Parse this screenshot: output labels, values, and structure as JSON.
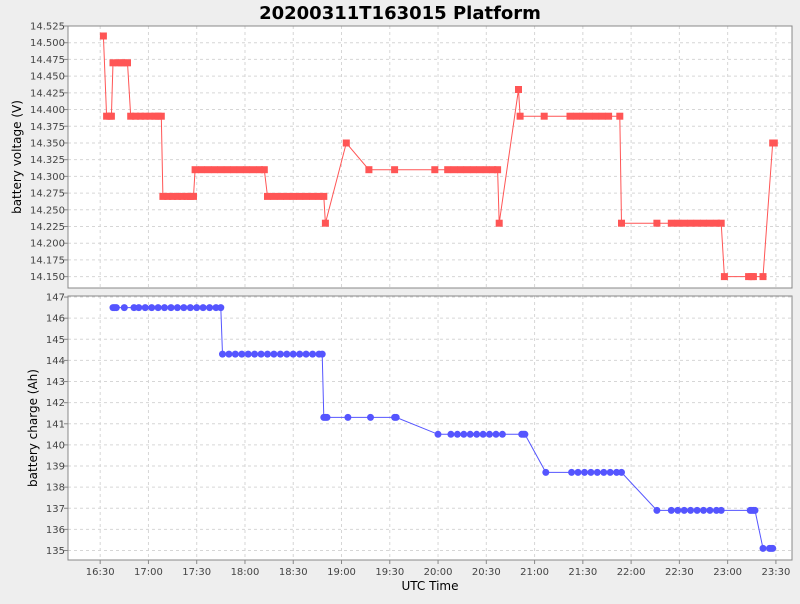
{
  "chart_data": {
    "type": "line",
    "title": "20200311T163015 Platform",
    "xlabel": "UTC Time",
    "x_ticks": [
      "16:30",
      "17:00",
      "17:30",
      "18:00",
      "18:30",
      "19:00",
      "19:30",
      "20:00",
      "20:30",
      "21:00",
      "21:30",
      "22:00",
      "22:30",
      "23:00",
      "23:30"
    ],
    "x_range_minutes_of_day": [
      970,
      1420
    ],
    "grid": true,
    "panels": [
      {
        "name": "voltage",
        "ylabel": "battery voltage (V)",
        "ylim": [
          14.133,
          14.525
        ],
        "y_ticks": [
          "14.150",
          "14.175",
          "14.200",
          "14.225",
          "14.250",
          "14.275",
          "14.300",
          "14.325",
          "14.350",
          "14.375",
          "14.400",
          "14.425",
          "14.450",
          "14.475",
          "14.500",
          "14.525"
        ],
        "color": "#ff5555",
        "marker": "square",
        "points": [
          [
            "16:32",
            14.51
          ],
          [
            "16:34",
            14.39
          ],
          [
            "16:36",
            14.39
          ],
          [
            "16:37",
            14.39
          ],
          [
            "16:38",
            14.47
          ],
          [
            "16:41",
            14.47
          ],
          [
            "16:43",
            14.47
          ],
          [
            "16:45",
            14.47
          ],
          [
            "16:47",
            14.47
          ],
          [
            "16:49",
            14.39
          ],
          [
            "16:52",
            14.39
          ],
          [
            "16:55",
            14.39
          ],
          [
            "16:58",
            14.39
          ],
          [
            "17:01",
            14.39
          ],
          [
            "17:04",
            14.39
          ],
          [
            "17:06",
            14.39
          ],
          [
            "17:08",
            14.39
          ],
          [
            "17:09",
            14.27
          ],
          [
            "17:12",
            14.27
          ],
          [
            "17:15",
            14.27
          ],
          [
            "17:18",
            14.27
          ],
          [
            "17:21",
            14.27
          ],
          [
            "17:24",
            14.27
          ],
          [
            "17:26",
            14.27
          ],
          [
            "17:28",
            14.27
          ],
          [
            "17:29",
            14.31
          ],
          [
            "17:33",
            14.31
          ],
          [
            "17:37",
            14.31
          ],
          [
            "17:41",
            14.31
          ],
          [
            "17:45",
            14.31
          ],
          [
            "17:49",
            14.31
          ],
          [
            "17:53",
            14.31
          ],
          [
            "17:57",
            14.31
          ],
          [
            "18:01",
            14.31
          ],
          [
            "18:05",
            14.31
          ],
          [
            "18:09",
            14.31
          ],
          [
            "18:12",
            14.31
          ],
          [
            "18:14",
            14.27
          ],
          [
            "18:18",
            14.27
          ],
          [
            "18:22",
            14.27
          ],
          [
            "18:26",
            14.27
          ],
          [
            "18:30",
            14.27
          ],
          [
            "18:34",
            14.27
          ],
          [
            "18:38",
            14.27
          ],
          [
            "18:42",
            14.27
          ],
          [
            "18:46",
            14.27
          ],
          [
            "18:49",
            14.27
          ],
          [
            "18:50",
            14.23
          ],
          [
            "19:03",
            14.35
          ],
          [
            "19:17",
            14.31
          ],
          [
            "19:33",
            14.31
          ],
          [
            "19:58",
            14.31
          ],
          [
            "20:06",
            14.31
          ],
          [
            "20:10",
            14.31
          ],
          [
            "20:14",
            14.31
          ],
          [
            "20:18",
            14.31
          ],
          [
            "20:22",
            14.31
          ],
          [
            "20:26",
            14.31
          ],
          [
            "20:30",
            14.31
          ],
          [
            "20:34",
            14.31
          ],
          [
            "20:37",
            14.31
          ],
          [
            "20:38",
            14.23
          ],
          [
            "20:50",
            14.43
          ],
          [
            "20:51",
            14.39
          ],
          [
            "21:06",
            14.39
          ],
          [
            "21:22",
            14.39
          ],
          [
            "21:26",
            14.39
          ],
          [
            "21:30",
            14.39
          ],
          [
            "21:34",
            14.39
          ],
          [
            "21:38",
            14.39
          ],
          [
            "21:42",
            14.39
          ],
          [
            "21:46",
            14.39
          ],
          [
            "21:53",
            14.39
          ],
          [
            "21:54",
            14.23
          ],
          [
            "22:16",
            14.23
          ],
          [
            "22:25",
            14.23
          ],
          [
            "22:29",
            14.23
          ],
          [
            "22:33",
            14.23
          ],
          [
            "22:37",
            14.23
          ],
          [
            "22:41",
            14.23
          ],
          [
            "22:45",
            14.23
          ],
          [
            "22:49",
            14.23
          ],
          [
            "22:53",
            14.23
          ],
          [
            "22:56",
            14.23
          ],
          [
            "22:58",
            14.15
          ],
          [
            "23:13",
            14.15
          ],
          [
            "23:15",
            14.15
          ],
          [
            "23:16",
            14.15
          ],
          [
            "23:22",
            14.15
          ],
          [
            "23:28",
            14.35
          ],
          [
            "23:29",
            14.35
          ]
        ]
      },
      {
        "name": "charge",
        "ylabel": "battery charge (Ah)",
        "ylim": [
          134.55,
          147.05
        ],
        "y_ticks": [
          "135",
          "136",
          "137",
          "138",
          "139",
          "140",
          "141",
          "142",
          "143",
          "144",
          "145",
          "146",
          "147"
        ],
        "color": "#5555ff",
        "marker": "circle",
        "points": [
          [
            "16:38",
            146.5
          ],
          [
            "16:39",
            146.5
          ],
          [
            "16:40",
            146.5
          ],
          [
            "16:45",
            146.5
          ],
          [
            "16:51",
            146.5
          ],
          [
            "16:54",
            146.5
          ],
          [
            "16:58",
            146.5
          ],
          [
            "17:02",
            146.5
          ],
          [
            "17:06",
            146.5
          ],
          [
            "17:10",
            146.5
          ],
          [
            "17:14",
            146.5
          ],
          [
            "17:18",
            146.5
          ],
          [
            "17:22",
            146.5
          ],
          [
            "17:26",
            146.5
          ],
          [
            "17:30",
            146.5
          ],
          [
            "17:34",
            146.5
          ],
          [
            "17:38",
            146.5
          ],
          [
            "17:42",
            146.5
          ],
          [
            "17:45",
            146.5
          ],
          [
            "17:46",
            144.3
          ],
          [
            "17:50",
            144.3
          ],
          [
            "17:54",
            144.3
          ],
          [
            "17:58",
            144.3
          ],
          [
            "18:02",
            144.3
          ],
          [
            "18:06",
            144.3
          ],
          [
            "18:10",
            144.3
          ],
          [
            "18:14",
            144.3
          ],
          [
            "18:18",
            144.3
          ],
          [
            "18:22",
            144.3
          ],
          [
            "18:26",
            144.3
          ],
          [
            "18:30",
            144.3
          ],
          [
            "18:34",
            144.3
          ],
          [
            "18:38",
            144.3
          ],
          [
            "18:42",
            144.3
          ],
          [
            "18:46",
            144.3
          ],
          [
            "18:48",
            144.3
          ],
          [
            "18:49",
            141.3
          ],
          [
            "18:50",
            141.3
          ],
          [
            "18:51",
            141.3
          ],
          [
            "19:04",
            141.3
          ],
          [
            "19:18",
            141.3
          ],
          [
            "19:33",
            141.3
          ],
          [
            "19:34",
            141.3
          ],
          [
            "20:00",
            140.5
          ],
          [
            "20:08",
            140.5
          ],
          [
            "20:12",
            140.5
          ],
          [
            "20:16",
            140.5
          ],
          [
            "20:20",
            140.5
          ],
          [
            "20:24",
            140.5
          ],
          [
            "20:28",
            140.5
          ],
          [
            "20:32",
            140.5
          ],
          [
            "20:36",
            140.5
          ],
          [
            "20:40",
            140.5
          ],
          [
            "20:52",
            140.5
          ],
          [
            "20:53",
            140.5
          ],
          [
            "20:54",
            140.5
          ],
          [
            "21:07",
            138.7
          ],
          [
            "21:23",
            138.7
          ],
          [
            "21:27",
            138.7
          ],
          [
            "21:31",
            138.7
          ],
          [
            "21:35",
            138.7
          ],
          [
            "21:39",
            138.7
          ],
          [
            "21:43",
            138.7
          ],
          [
            "21:47",
            138.7
          ],
          [
            "21:51",
            138.7
          ],
          [
            "21:54",
            138.7
          ],
          [
            "22:16",
            136.9
          ],
          [
            "22:25",
            136.9
          ],
          [
            "22:29",
            136.9
          ],
          [
            "22:33",
            136.9
          ],
          [
            "22:37",
            136.9
          ],
          [
            "22:41",
            136.9
          ],
          [
            "22:45",
            136.9
          ],
          [
            "22:49",
            136.9
          ],
          [
            "22:53",
            136.9
          ],
          [
            "22:56",
            136.9
          ],
          [
            "23:14",
            136.9
          ],
          [
            "23:15",
            136.9
          ],
          [
            "23:16",
            136.9
          ],
          [
            "23:17",
            136.9
          ],
          [
            "23:22",
            135.1
          ],
          [
            "23:26",
            135.1
          ],
          [
            "23:27",
            135.1
          ],
          [
            "23:28",
            135.1
          ]
        ]
      }
    ]
  }
}
